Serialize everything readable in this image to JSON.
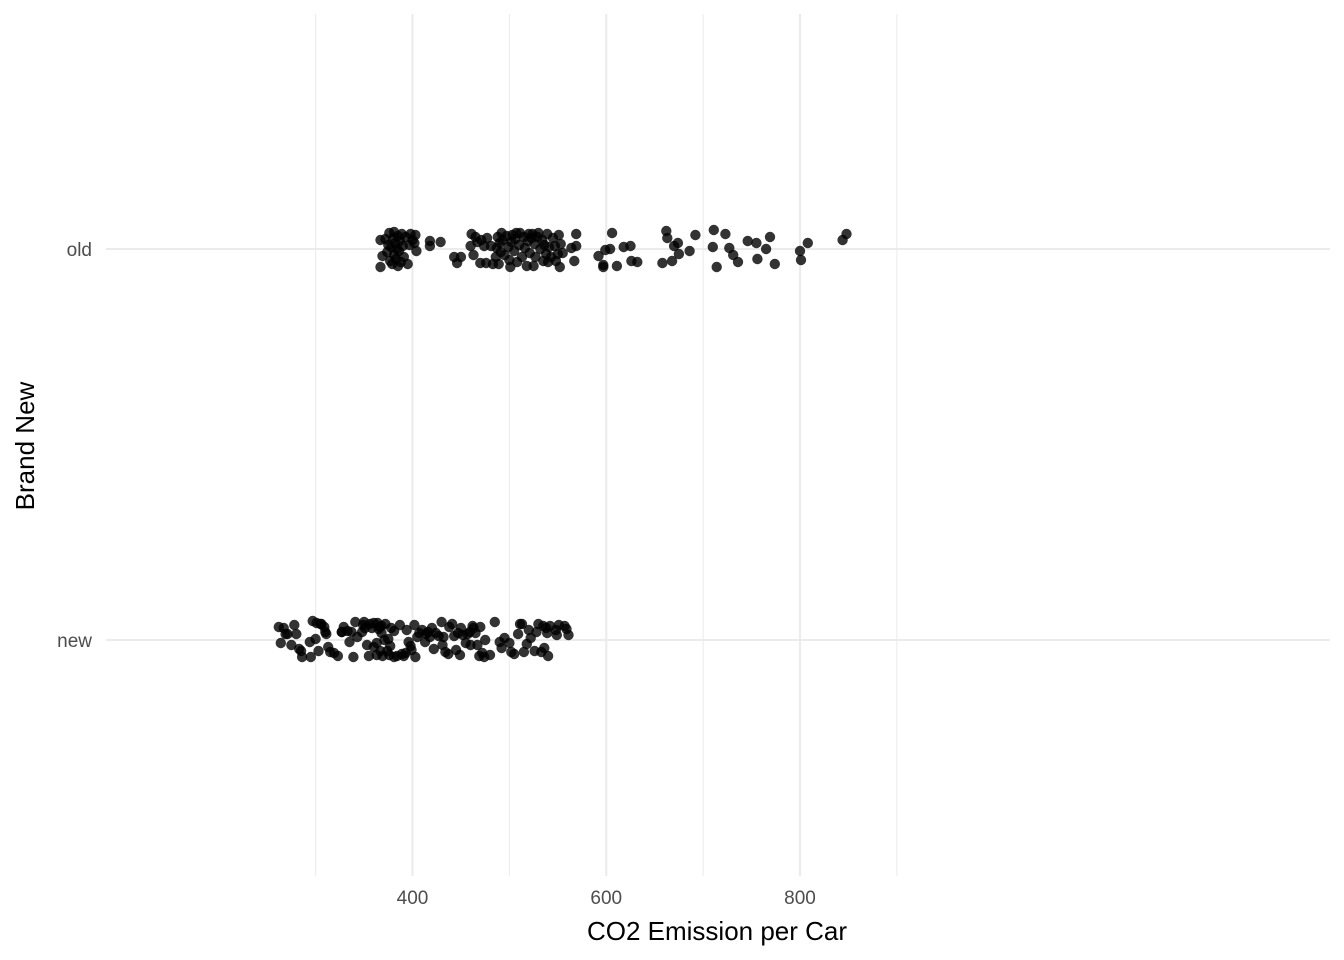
{
  "chart_data": {
    "type": "scatter",
    "subtype": "jitter",
    "title": "",
    "xlabel": "CO2 Emission per Car",
    "ylabel": "Brand New",
    "x_ticks": [
      400,
      600,
      800
    ],
    "xlim": [
      245,
      875
    ],
    "categories": [
      "new",
      "old"
    ],
    "grid": true,
    "point_color": "#000000",
    "point_alpha": 0.8,
    "series": [
      {
        "category": "old",
        "points": [
          [
            367,
            9
          ],
          [
            367,
            -18
          ],
          [
            369,
            -7
          ],
          [
            372,
            10
          ],
          [
            374,
            -3
          ],
          [
            375,
            4
          ],
          [
            376,
            16
          ],
          [
            377,
            -12
          ],
          [
            378,
            2
          ],
          [
            379,
            -15
          ],
          [
            380,
            11
          ],
          [
            381,
            -6
          ],
          [
            381,
            17
          ],
          [
            382,
            6
          ],
          [
            383,
            -10
          ],
          [
            384,
            0
          ],
          [
            385,
            13
          ],
          [
            385,
            -17
          ],
          [
            386,
            -2
          ],
          [
            387,
            8
          ],
          [
            388,
            -13
          ],
          [
            389,
            15
          ],
          [
            390,
            3
          ],
          [
            391,
            -8
          ],
          [
            393,
            12
          ],
          [
            395,
            -15
          ],
          [
            397,
            4
          ],
          [
            398,
            15
          ],
          [
            400,
            9
          ],
          [
            402,
            6
          ],
          [
            403,
            14
          ],
          [
            404,
            -2
          ],
          [
            418,
            8
          ],
          [
            418,
            3
          ],
          [
            429,
            7
          ],
          [
            443,
            -8
          ],
          [
            446,
            -14
          ],
          [
            450,
            -8
          ],
          [
            460,
            3
          ],
          [
            461,
            15
          ],
          [
            463,
            -6
          ],
          [
            465,
            12
          ],
          [
            467,
            7
          ],
          [
            470,
            -14
          ],
          [
            471,
            9
          ],
          [
            474,
            3
          ],
          [
            476,
            -14
          ],
          [
            477,
            11
          ],
          [
            481,
            3
          ],
          [
            483,
            -15
          ],
          [
            486,
            -8
          ],
          [
            487,
            1
          ],
          [
            488,
            12
          ],
          [
            489,
            -15
          ],
          [
            490,
            6
          ],
          [
            491,
            -3
          ],
          [
            492,
            16
          ],
          [
            493,
            9
          ],
          [
            495,
            -6
          ],
          [
            497,
            13
          ],
          [
            499,
            2
          ],
          [
            500,
            -11
          ],
          [
            501,
            -18
          ],
          [
            502,
            7
          ],
          [
            503,
            14
          ],
          [
            505,
            -2
          ],
          [
            506,
            10
          ],
          [
            507,
            16
          ],
          [
            508,
            -13
          ],
          [
            510,
            4
          ],
          [
            511,
            16
          ],
          [
            513,
            -8
          ],
          [
            515,
            12
          ],
          [
            516,
            1
          ],
          [
            518,
            -17
          ],
          [
            519,
            8
          ],
          [
            520,
            15
          ],
          [
            521,
            -4
          ],
          [
            523,
            11
          ],
          [
            524,
            15
          ],
          [
            525,
            -17
          ],
          [
            526,
            5
          ],
          [
            527,
            -8
          ],
          [
            529,
            12
          ],
          [
            530,
            16
          ],
          [
            532,
            0
          ],
          [
            534,
            9
          ],
          [
            535,
            -12
          ],
          [
            536,
            4
          ],
          [
            538,
            -5
          ],
          [
            539,
            15
          ],
          [
            540,
            -13
          ],
          [
            541,
            2
          ],
          [
            543,
            -8
          ],
          [
            545,
            11
          ],
          [
            547,
            3
          ],
          [
            548,
            -12
          ],
          [
            550,
            -5
          ],
          [
            551,
            14
          ],
          [
            552,
            -18
          ],
          [
            553,
            5
          ],
          [
            555,
            -4
          ],
          [
            564,
            1
          ],
          [
            567,
            -12
          ],
          [
            569,
            15
          ],
          [
            569,
            3
          ],
          [
            592,
            -7
          ],
          [
            597,
            -16
          ],
          [
            597,
            -18
          ],
          [
            599,
            -1
          ],
          [
            604,
            0
          ],
          [
            606,
            16
          ],
          [
            611,
            -17
          ],
          [
            618,
            2
          ],
          [
            625,
            3
          ],
          [
            626,
            -12
          ],
          [
            632,
            -13
          ],
          [
            658,
            -14
          ],
          [
            662,
            18
          ],
          [
            663,
            11
          ],
          [
            668,
            -12
          ],
          [
            670,
            3
          ],
          [
            674,
            6
          ],
          [
            675,
            -5
          ],
          [
            686,
            -2
          ],
          [
            692,
            14
          ],
          [
            710,
            2
          ],
          [
            711,
            19
          ],
          [
            714,
            -18
          ],
          [
            723,
            15
          ],
          [
            727,
            1
          ],
          [
            731,
            -6
          ],
          [
            736,
            -13
          ],
          [
            746,
            8
          ],
          [
            755,
            6
          ],
          [
            756,
            -10
          ],
          [
            765,
            0
          ],
          [
            769,
            12
          ],
          [
            774,
            -15
          ],
          [
            800,
            -2
          ],
          [
            801,
            -11
          ],
          [
            808,
            6
          ],
          [
            844,
            9
          ],
          [
            848,
            15
          ]
        ]
      },
      {
        "category": "new",
        "points": [
          [
            262,
            13
          ],
          [
            264,
            -3
          ],
          [
            267,
            12
          ],
          [
            269,
            6
          ],
          [
            271,
            6
          ],
          [
            275,
            -5
          ],
          [
            278,
            15
          ],
          [
            280,
            6
          ],
          [
            283,
            -9
          ],
          [
            285,
            -11
          ],
          [
            286,
            -17
          ],
          [
            294,
            -2
          ],
          [
            295,
            -17
          ],
          [
            297,
            19
          ],
          [
            300,
            1
          ],
          [
            301,
            17
          ],
          [
            303,
            -11
          ],
          [
            305,
            16
          ],
          [
            306,
            16
          ],
          [
            309,
            13
          ],
          [
            310,
            8
          ],
          [
            311,
            6
          ],
          [
            313,
            -7
          ],
          [
            315,
            -12
          ],
          [
            319,
            -13
          ],
          [
            323,
            -16
          ],
          [
            327,
            8
          ],
          [
            327,
            8
          ],
          [
            329,
            13
          ],
          [
            333,
            9
          ],
          [
            335,
            -2
          ],
          [
            337,
            8
          ],
          [
            339,
            -17
          ],
          [
            341,
            18
          ],
          [
            343,
            3
          ],
          [
            348,
            8
          ],
          [
            349,
            15
          ],
          [
            350,
            18
          ],
          [
            351,
            12
          ],
          [
            353,
            -5
          ],
          [
            355,
            -16
          ],
          [
            356,
            16
          ],
          [
            358,
            12
          ],
          [
            360,
            -7
          ],
          [
            360,
            17
          ],
          [
            363,
            -15
          ],
          [
            363,
            -3
          ],
          [
            364,
            17
          ],
          [
            365,
            11
          ],
          [
            366,
            13
          ],
          [
            367,
            -11
          ],
          [
            368,
            7
          ],
          [
            368,
            14
          ],
          [
            369,
            -16
          ],
          [
            371,
            0
          ],
          [
            372,
            16
          ],
          [
            374,
            -11
          ],
          [
            375,
            1
          ],
          [
            376,
            -15
          ],
          [
            377,
            -6
          ],
          [
            378,
            12
          ],
          [
            381,
            9
          ],
          [
            381,
            -17
          ],
          [
            384,
            -16
          ],
          [
            387,
            15
          ],
          [
            389,
            -14
          ],
          [
            391,
            -16
          ],
          [
            393,
            -13
          ],
          [
            394,
            10
          ],
          [
            396,
            -2
          ],
          [
            398,
            -6
          ],
          [
            399,
            -10
          ],
          [
            402,
            15
          ],
          [
            403,
            -17
          ],
          [
            405,
            3
          ],
          [
            407,
            7
          ],
          [
            410,
            10
          ],
          [
            413,
            -2
          ],
          [
            414,
            6
          ],
          [
            416,
            8
          ],
          [
            418,
            3
          ],
          [
            420,
            12
          ],
          [
            422,
            -9
          ],
          [
            424,
            7
          ],
          [
            427,
            4
          ],
          [
            430,
            18
          ],
          [
            431,
            -5
          ],
          [
            432,
            3
          ],
          [
            434,
            -12
          ],
          [
            437,
            -14
          ],
          [
            438,
            13
          ],
          [
            441,
            16
          ],
          [
            443,
            4
          ],
          [
            445,
            -10
          ],
          [
            447,
            7
          ],
          [
            449,
            -15
          ],
          [
            450,
            12
          ],
          [
            452,
            5
          ],
          [
            455,
            -3
          ],
          [
            457,
            6
          ],
          [
            459,
            8
          ],
          [
            460,
            -5
          ],
          [
            462,
            14
          ],
          [
            463,
            12
          ],
          [
            465,
            7
          ],
          [
            467,
            -5
          ],
          [
            469,
            -16
          ],
          [
            470,
            13
          ],
          [
            472,
            -13
          ],
          [
            474,
            -17
          ],
          [
            475,
            0
          ],
          [
            480,
            -15
          ],
          [
            485,
            18
          ],
          [
            490,
            -2
          ],
          [
            492,
            -8
          ],
          [
            495,
            2
          ],
          [
            500,
            -3
          ],
          [
            502,
            -12
          ],
          [
            505,
            -14
          ],
          [
            509,
            6
          ],
          [
            511,
            16
          ],
          [
            513,
            16
          ],
          [
            515,
            -12
          ],
          [
            518,
            -4
          ],
          [
            520,
            10
          ],
          [
            522,
            2
          ],
          [
            526,
            -11
          ],
          [
            528,
            8
          ],
          [
            530,
            16
          ],
          [
            533,
            -12
          ],
          [
            535,
            14
          ],
          [
            536,
            -8
          ],
          [
            538,
            12
          ],
          [
            539,
            7
          ],
          [
            540,
            -16
          ],
          [
            542,
            14
          ],
          [
            548,
            10
          ],
          [
            549,
            5
          ],
          [
            551,
            15
          ],
          [
            557,
            14
          ],
          [
            559,
            11
          ],
          [
            561,
            5
          ]
        ]
      }
    ]
  }
}
